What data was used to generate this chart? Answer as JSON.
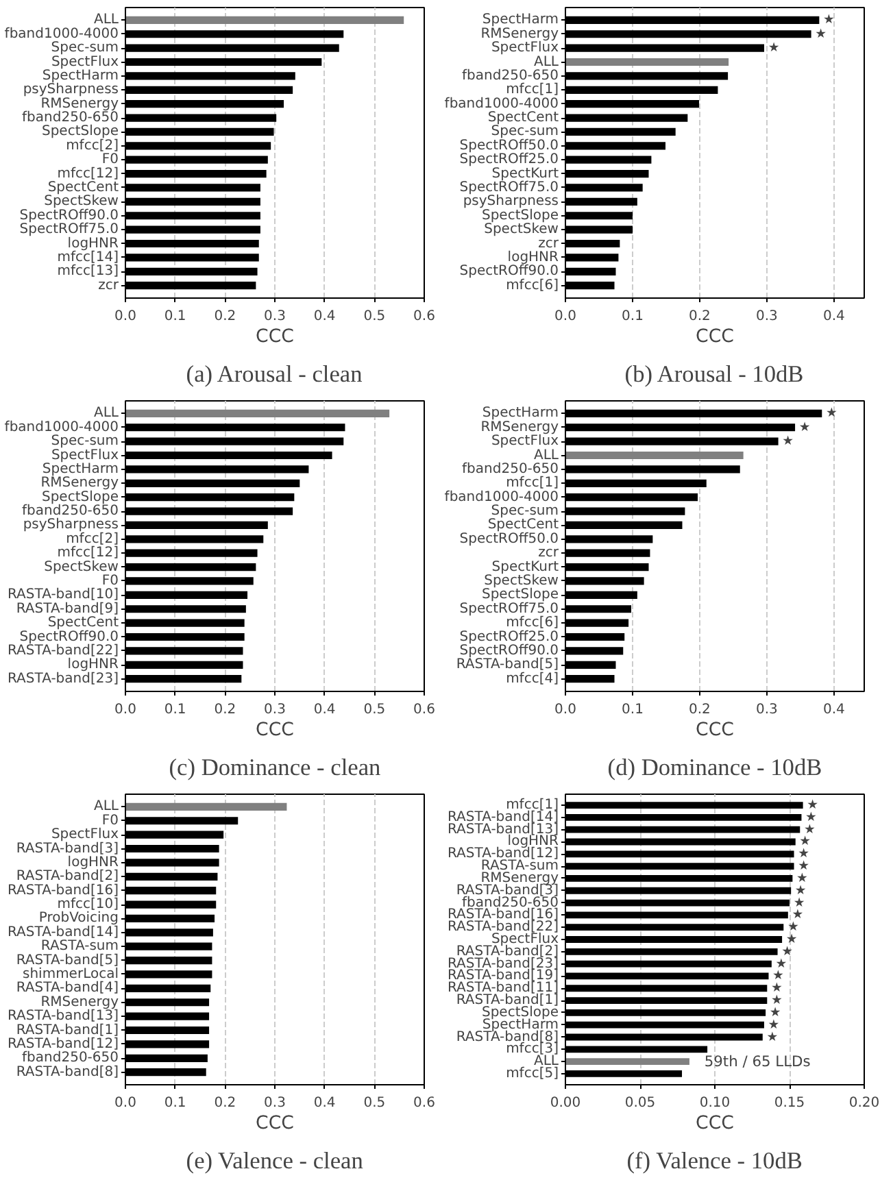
{
  "chart_data": [
    {
      "type": "bar",
      "orientation": "horizontal",
      "title": "(a) Arousal - clean",
      "xlabel": "CCC",
      "grid": "x",
      "categories": [
        "ALL",
        "fband1000-4000",
        "Spec-sum",
        "SpectFlux",
        "SpectHarm",
        "psySharpness",
        "RMSenergy",
        "fband250-650",
        "SpectSlope",
        "mfcc[2]",
        "F0",
        "mfcc[12]",
        "SpectCent",
        "SpectSkew",
        "SpectROff90.0",
        "SpectROff75.0",
        "logHNR",
        "mfcc[14]",
        "mfcc[13]",
        "zcr"
      ],
      "values": [
        0.559,
        0.438,
        0.429,
        0.394,
        0.341,
        0.336,
        0.318,
        0.303,
        0.298,
        0.292,
        0.286,
        0.283,
        0.271,
        0.271,
        0.271,
        0.271,
        0.268,
        0.268,
        0.265,
        0.262
      ],
      "colors": [
        "#808080",
        "#000000",
        "#000000",
        "#000000",
        "#000000",
        "#000000",
        "#000000",
        "#000000",
        "#000000",
        "#000000",
        "#000000",
        "#000000",
        "#000000",
        "#000000",
        "#000000",
        "#000000",
        "#000000",
        "#000000",
        "#000000",
        "#000000"
      ],
      "xlim": [
        0,
        0.6
      ],
      "xticks": [
        {
          "value": 0,
          "label": "0.0"
        },
        0.1,
        0.2,
        0.3,
        0.4,
        0.5,
        0.6
      ]
    },
    {
      "type": "bar",
      "orientation": "horizontal",
      "title": "(b) Arousal - 10dB",
      "xlabel": "CCC",
      "grid": "x",
      "categories": [
        "SpectHarm",
        "RMSenergy",
        "SpectFlux",
        "ALL",
        "fband250-650",
        "mfcc[1]",
        "fband1000-4000",
        "SpectCent",
        "Spec-sum",
        "SpectROff50.0",
        "SpectROff25.0",
        "SpectKurt",
        "SpectROff75.0",
        "psySharpness",
        "SpectSlope",
        "SpectSkew",
        "zcr",
        "logHNR",
        "SpectROff90.0",
        "mfcc[6]"
      ],
      "values": [
        0.378,
        0.366,
        0.296,
        0.243,
        0.242,
        0.227,
        0.199,
        0.182,
        0.164,
        0.149,
        0.128,
        0.124,
        0.115,
        0.107,
        0.1,
        0.1,
        0.081,
        0.079,
        0.075,
        0.073
      ],
      "colors": [
        "#000000",
        "#000000",
        "#000000",
        "#808080",
        "#000000",
        "#000000",
        "#000000",
        "#000000",
        "#000000",
        "#000000",
        "#000000",
        "#000000",
        "#000000",
        "#000000",
        "#000000",
        "#000000",
        "#000000",
        "#000000",
        "#000000",
        "#000000"
      ],
      "xlim": [
        0,
        0.445
      ],
      "xticks": [
        {
          "value": 0,
          "label": "0.0"
        },
        0.1,
        0.2,
        0.3,
        0.4
      ],
      "value_labels": [
        "★",
        "★",
        "★",
        null,
        null,
        null,
        null,
        null,
        null,
        null,
        null,
        null,
        null,
        null,
        null,
        null,
        null,
        null,
        null,
        null
      ]
    },
    {
      "type": "bar",
      "orientation": "horizontal",
      "title": "(c) Dominance - clean",
      "xlabel": "CCC",
      "grid": "x",
      "categories": [
        "ALL",
        "fband1000-4000",
        "Spec-sum",
        "SpectFlux",
        "SpectHarm",
        "RMSenergy",
        "SpectSlope",
        "fband250-650",
        "psySharpness",
        "mfcc[2]",
        "mfcc[12]",
        "SpectSkew",
        "F0",
        "RASTA-band[10]",
        "RASTA-band[9]",
        "SpectCent",
        "SpectROff90.0",
        "RASTA-band[22]",
        "logHNR",
        "RASTA-band[23]"
      ],
      "values": [
        0.53,
        0.441,
        0.438,
        0.415,
        0.368,
        0.35,
        0.339,
        0.336,
        0.286,
        0.277,
        0.265,
        0.262,
        0.257,
        0.245,
        0.242,
        0.239,
        0.239,
        0.236,
        0.236,
        0.233
      ],
      "colors": [
        "#808080",
        "#000000",
        "#000000",
        "#000000",
        "#000000",
        "#000000",
        "#000000",
        "#000000",
        "#000000",
        "#000000",
        "#000000",
        "#000000",
        "#000000",
        "#000000",
        "#000000",
        "#000000",
        "#000000",
        "#000000",
        "#000000",
        "#000000"
      ],
      "xlim": [
        0,
        0.6
      ],
      "xticks": [
        {
          "value": 0,
          "label": "0.0"
        },
        0.1,
        0.2,
        0.3,
        0.4,
        0.5,
        0.6
      ]
    },
    {
      "type": "bar",
      "orientation": "horizontal",
      "title": "(d) Dominance - 10dB",
      "xlabel": "CCC",
      "grid": "x",
      "categories": [
        "SpectHarm",
        "RMSenergy",
        "SpectFlux",
        "ALL",
        "fband250-650",
        "mfcc[1]",
        "fband1000-4000",
        "Spec-sum",
        "SpectCent",
        "SpectROff50.0",
        "zcr",
        "SpectKurt",
        "SpectSkew",
        "SpectSlope",
        "SpectROff75.0",
        "mfcc[6]",
        "SpectROff25.0",
        "SpectROff90.0",
        "RASTA-band[5]",
        "mfcc[4]"
      ],
      "values": [
        0.382,
        0.342,
        0.317,
        0.265,
        0.26,
        0.21,
        0.197,
        0.178,
        0.174,
        0.13,
        0.126,
        0.124,
        0.117,
        0.107,
        0.098,
        0.094,
        0.088,
        0.086,
        0.075,
        0.073
      ],
      "colors": [
        "#000000",
        "#000000",
        "#000000",
        "#808080",
        "#000000",
        "#000000",
        "#000000",
        "#000000",
        "#000000",
        "#000000",
        "#000000",
        "#000000",
        "#000000",
        "#000000",
        "#000000",
        "#000000",
        "#000000",
        "#000000",
        "#000000",
        "#000000"
      ],
      "xlim": [
        0,
        0.445
      ],
      "xticks": [
        {
          "value": 0,
          "label": "0.0"
        },
        0.1,
        0.2,
        0.3,
        0.4
      ],
      "value_labels": [
        "★",
        "★",
        "★",
        null,
        null,
        null,
        null,
        null,
        null,
        null,
        null,
        null,
        null,
        null,
        null,
        null,
        null,
        null,
        null,
        null
      ]
    },
    {
      "type": "bar",
      "orientation": "horizontal",
      "title": "(e) Valence - clean",
      "xlabel": "CCC",
      "grid": "x",
      "categories": [
        "ALL",
        "F0",
        "SpectFlux",
        "RASTA-band[3]",
        "logHNR",
        "RASTA-band[2]",
        "RASTA-band[16]",
        "mfcc[10]",
        "ProbVoicing",
        "RASTA-band[14]",
        "RASTA-sum",
        "RASTA-band[5]",
        "shimmerLocal",
        "RASTA-band[4]",
        "RMSenergy",
        "RASTA-band[13]",
        "RASTA-band[1]",
        "RASTA-band[12]",
        "fband250-650",
        "RASTA-band[8]"
      ],
      "values": [
        0.324,
        0.226,
        0.197,
        0.188,
        0.188,
        0.185,
        0.182,
        0.182,
        0.179,
        0.176,
        0.174,
        0.174,
        0.174,
        0.171,
        0.168,
        0.168,
        0.168,
        0.168,
        0.165,
        0.162
      ],
      "colors": [
        "#808080",
        "#000000",
        "#000000",
        "#000000",
        "#000000",
        "#000000",
        "#000000",
        "#000000",
        "#000000",
        "#000000",
        "#000000",
        "#000000",
        "#000000",
        "#000000",
        "#000000",
        "#000000",
        "#000000",
        "#000000",
        "#000000",
        "#000000"
      ],
      "xlim": [
        0,
        0.6
      ],
      "xticks": [
        {
          "value": 0,
          "label": "0.0"
        },
        0.1,
        0.2,
        0.3,
        0.4,
        0.5,
        0.6
      ]
    },
    {
      "type": "bar",
      "orientation": "horizontal",
      "title": "(f) Valence - 10dB",
      "xlabel": "CCC",
      "grid": "x",
      "categories": [
        "mfcc[1]",
        "RASTA-band[14]",
        "RASTA-band[13]",
        "logHNR",
        "RASTA-band[12]",
        "RASTA-sum",
        "RMSenergy",
        "RASTA-band[3]",
        "fband250-650",
        "RASTA-band[16]",
        "RASTA-band[22]",
        "SpectFlux",
        "RASTA-band[2]",
        "RASTA-band[23]",
        "RASTA-band[19]",
        "RASTA-band[11]",
        "RASTA-band[1]",
        "SpectSlope",
        "SpectHarm",
        "RASTA-band[8]",
        "mfcc[3]",
        "ALL",
        "mfcc[5]"
      ],
      "values": [
        0.159,
        0.158,
        0.157,
        0.154,
        0.153,
        0.153,
        0.152,
        0.151,
        0.15,
        0.149,
        0.146,
        0.145,
        0.142,
        0.138,
        0.136,
        0.135,
        0.135,
        0.134,
        0.133,
        0.132,
        0.095,
        0.083,
        0.078
      ],
      "colors": [
        "#000000",
        "#000000",
        "#000000",
        "#000000",
        "#000000",
        "#000000",
        "#000000",
        "#000000",
        "#000000",
        "#000000",
        "#000000",
        "#000000",
        "#000000",
        "#000000",
        "#000000",
        "#000000",
        "#000000",
        "#000000",
        "#000000",
        "#000000",
        "#000000",
        "#808080",
        "#000000"
      ],
      "xlim": [
        0,
        0.2
      ],
      "xticks": [
        {
          "value": 0,
          "label": "0.00"
        },
        {
          "value": 0.05,
          "label": "0.05"
        },
        {
          "value": 0.1,
          "label": "0.10"
        },
        {
          "value": 0.15,
          "label": "0.15"
        },
        {
          "value": 0.2,
          "label": "0.20"
        }
      ],
      "value_labels": [
        "★",
        "★",
        "★",
        "★",
        "★",
        "★",
        "★",
        "★",
        "★",
        "★",
        "★",
        "★",
        "★",
        "★",
        "★",
        "★",
        "★",
        "★",
        "★",
        "★",
        null,
        null,
        null
      ],
      "annotations": [
        "59th / 65 LLDs"
      ]
    }
  ]
}
